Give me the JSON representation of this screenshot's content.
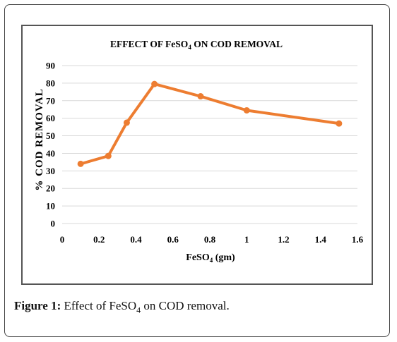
{
  "caption": {
    "label": "Figure 1:",
    "text_before": "Effect of FeSO",
    "sub": "4",
    "text_after": " on COD removal."
  },
  "colors": {
    "line": "#ED7D31",
    "grid": "#d9d9d9",
    "text": "#000000"
  },
  "chart_data": {
    "type": "line",
    "title": {
      "before": "EFFECT OF FeSO",
      "sub": "4",
      "after": " ON COD REMOVAL"
    },
    "xlabel": {
      "before": "FeSO",
      "sub": "4",
      "after": " (gm)"
    },
    "ylabel": "% COD REMOVAL",
    "xlim": [
      0,
      1.6
    ],
    "ylim": [
      0,
      90
    ],
    "xticks": [
      "0",
      "0.2",
      "0.4",
      "0.6",
      "0.8",
      "1",
      "1.2",
      "1.4",
      "1.6"
    ],
    "yticks": [
      "0",
      "10",
      "20",
      "30",
      "40",
      "50",
      "60",
      "70",
      "80",
      "90"
    ],
    "grid": "horizontal",
    "series": [
      {
        "x": [
          0.1,
          0.25,
          0.35,
          0.5,
          0.75,
          1.0,
          1.5
        ],
        "y": [
          34,
          38.5,
          57.5,
          79.5,
          72.5,
          64.5,
          57
        ]
      }
    ]
  }
}
